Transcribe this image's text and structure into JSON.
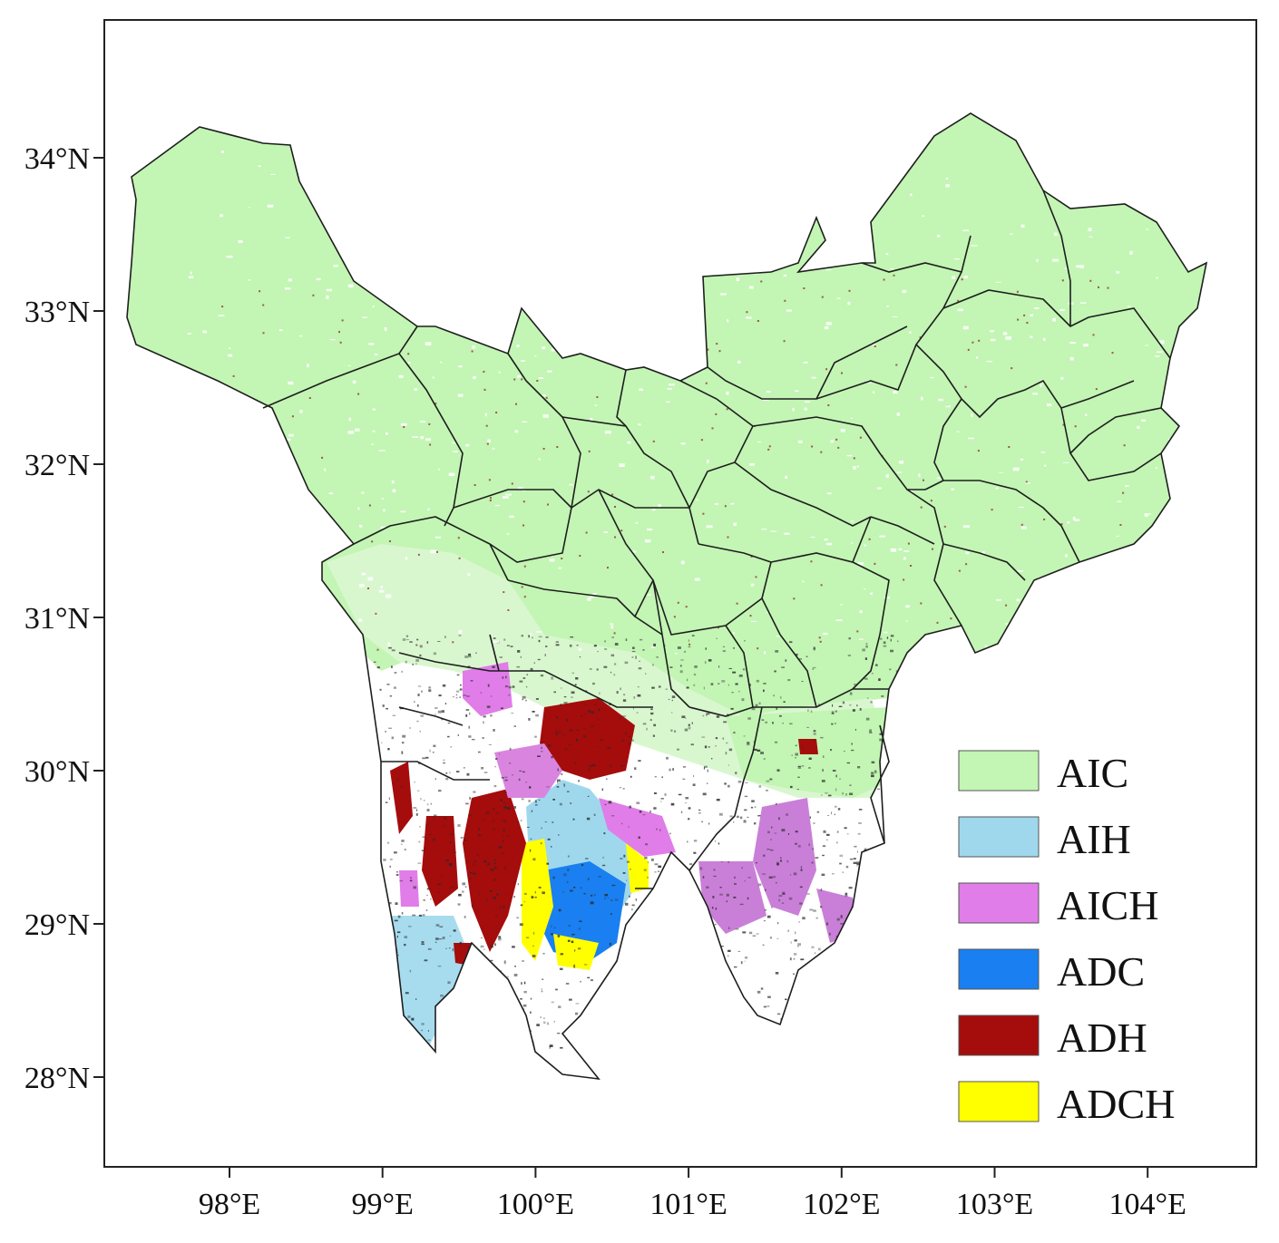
{
  "axes": {
    "lat_ticks": [
      {
        "value": 34,
        "label": "34°N"
      },
      {
        "value": 33,
        "label": "33°N"
      },
      {
        "value": 32,
        "label": "32°N"
      },
      {
        "value": 31,
        "label": "31°N"
      },
      {
        "value": 30,
        "label": "30°N"
      },
      {
        "value": 29,
        "label": "29°N"
      },
      {
        "value": 28,
        "label": "28°N"
      }
    ],
    "lon_ticks": [
      {
        "value": 98,
        "label": "98°E"
      },
      {
        "value": 99,
        "label": "99°E"
      },
      {
        "value": 100,
        "label": "100°E"
      },
      {
        "value": 101,
        "label": "101°E"
      },
      {
        "value": 102,
        "label": "102°E"
      },
      {
        "value": 103,
        "label": "103°E"
      },
      {
        "value": 104,
        "label": "104°E"
      }
    ],
    "lon_range": [
      97.2,
      104.7
    ],
    "lat_range": [
      27.4,
      34.9
    ]
  },
  "legend": {
    "placement": "bottom-right",
    "items": [
      {
        "label": "AIC",
        "color": "#c3f5b4"
      },
      {
        "label": "AIH",
        "color": "#9fd8ec"
      },
      {
        "label": "AICH",
        "color": "#e07de8"
      },
      {
        "label": "ADC",
        "color": "#1a7ff0"
      },
      {
        "label": "ADH",
        "color": "#a50c0c"
      },
      {
        "label": "ADCH",
        "color": "#ffff00"
      }
    ]
  }
}
